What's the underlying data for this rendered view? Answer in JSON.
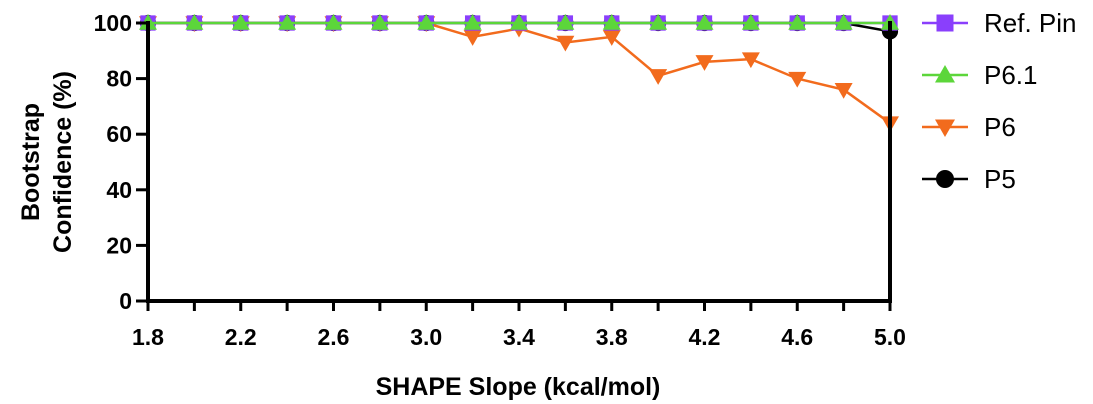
{
  "chart_data": {
    "type": "line",
    "title": "",
    "xlabel": "SHAPE Slope (kcal/mol)",
    "ylabel_lines": [
      "Bootstrap",
      "Confidence (%)"
    ],
    "xlim": [
      1.8,
      5.0
    ],
    "ylim": [
      0,
      100
    ],
    "x_ticks": [
      "1.8",
      "2.2",
      "2.6",
      "3.0",
      "3.4",
      "3.8",
      "4.2",
      "4.6",
      "5.0"
    ],
    "y_ticks": [
      "0",
      "20",
      "40",
      "60",
      "80",
      "100"
    ],
    "grid": false,
    "legend_position": "right",
    "x": [
      1.8,
      2.0,
      2.2,
      2.4,
      2.6,
      2.8,
      3.0,
      3.2,
      3.4,
      3.6,
      3.8,
      4.0,
      4.2,
      4.4,
      4.6,
      4.8,
      5.0
    ],
    "series": [
      {
        "name": "P5",
        "color": "#000000",
        "marker": "circle",
        "values": [
          100,
          100,
          100,
          100,
          100,
          100,
          100,
          100,
          100,
          100,
          100,
          100,
          100,
          100,
          100,
          100,
          97
        ]
      },
      {
        "name": "P6",
        "color": "#f26b1d",
        "marker": "triangle-down",
        "values": [
          100,
          100,
          100,
          100,
          100,
          100,
          100,
          95,
          98,
          93,
          95,
          81,
          86,
          87,
          80,
          76,
          64
        ]
      },
      {
        "name": "Ref. Pin",
        "color": "#8a3ffc",
        "marker": "square",
        "values": [
          100,
          100,
          100,
          100,
          100,
          100,
          100,
          100,
          100,
          100,
          100,
          100,
          100,
          100,
          100,
          100,
          100
        ]
      },
      {
        "name": "P6.1",
        "color": "#5cd63a",
        "marker": "triangle-up",
        "values": [
          100,
          100,
          100,
          100,
          100,
          100,
          100,
          100,
          100,
          100,
          100,
          100,
          100,
          100,
          100,
          100,
          100
        ]
      }
    ],
    "legend_order": [
      "Ref. Pin",
      "P6.1",
      "P6",
      "P5"
    ]
  }
}
